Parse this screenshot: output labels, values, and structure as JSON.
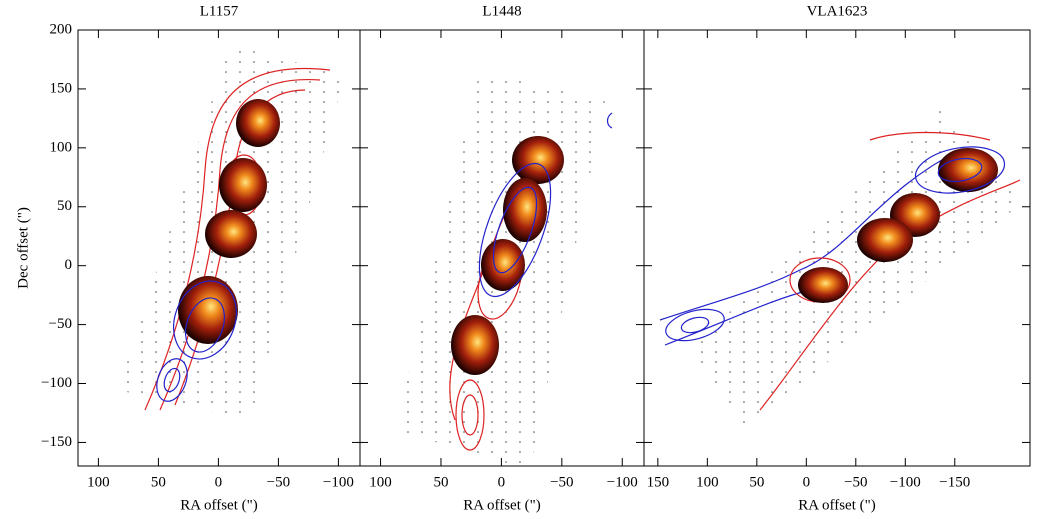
{
  "chart_data": [
    {
      "type": "contour",
      "title": "L1157",
      "xlabel": "RA offset (\")",
      "ylabel": "Dec offset (\")",
      "xlim": [
        117,
        -118
      ],
      "xticks": [
        100,
        50,
        0,
        {
          "value": -50,
          "label": "−50"
        },
        {
          "value": -100,
          "label": "−100"
        }
      ],
      "ylim": [
        -170,
        200
      ],
      "yticks": [
        {
          "value": -150,
          "label": "−150"
        },
        {
          "value": -100,
          "label": "−100"
        },
        {
          "value": -50,
          "label": "−50"
        },
        0,
        50,
        100,
        150,
        200
      ]
    },
    {
      "type": "contour",
      "title": "L1448",
      "xlabel": "RA offset (\")",
      "xlim": [
        117,
        -118
      ],
      "xticks": [
        100,
        50,
        0,
        {
          "value": -50,
          "label": "−50"
        },
        {
          "value": -100,
          "label": "−100"
        }
      ],
      "ylim": [
        -170,
        200
      ]
    },
    {
      "type": "contour",
      "title": "VLA1623",
      "xlabel": "RA offset (\")",
      "xlim": [
        164,
        -226
      ],
      "xticks": [
        150,
        100,
        50,
        0,
        {
          "value": -50,
          "label": "−50"
        },
        {
          "value": -100,
          "label": "−100"
        },
        {
          "value": -150,
          "label": "−150"
        }
      ],
      "ylim": [
        -170,
        200
      ]
    }
  ]
}
